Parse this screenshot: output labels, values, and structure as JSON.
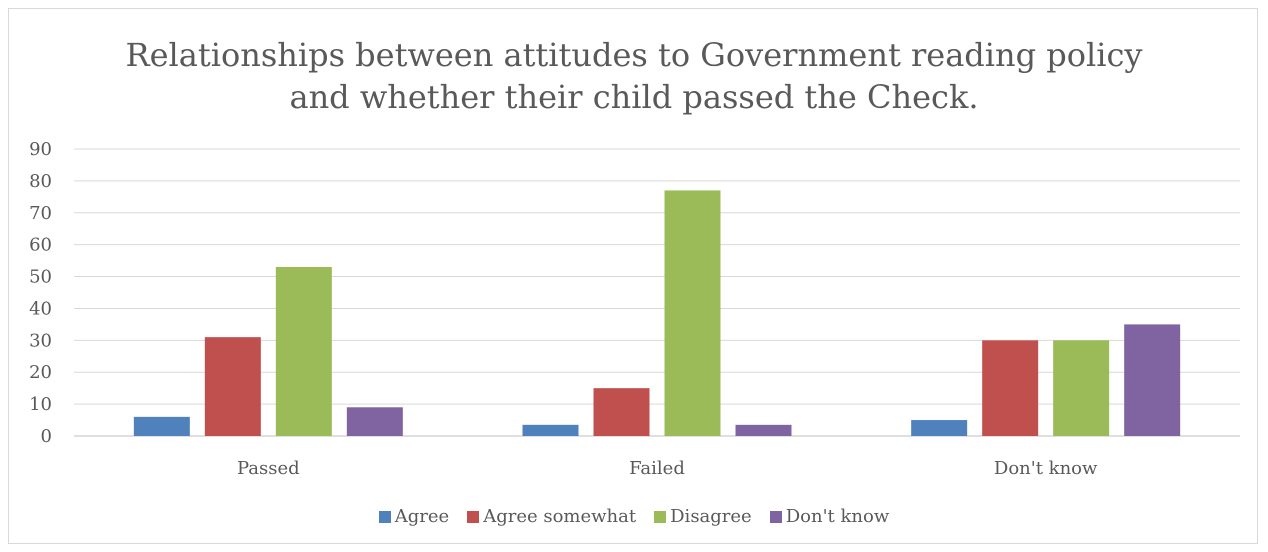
{
  "chart_data": {
    "type": "bar",
    "title_lines": [
      "Relationships between attitudes to Government reading policy",
      "and whether their child passed the Check."
    ],
    "categories": [
      "Passed",
      "Failed",
      "Don't know"
    ],
    "series": [
      {
        "name": "Agree",
        "color": "#4f81bd",
        "values": [
          6,
          3.5,
          5
        ]
      },
      {
        "name": "Agree somewhat",
        "color": "#c0504d",
        "values": [
          31,
          15,
          30
        ]
      },
      {
        "name": "Disagree",
        "color": "#9bbb59",
        "values": [
          53,
          77,
          30
        ]
      },
      {
        "name": "Don't know",
        "color": "#8064a2",
        "values": [
          9,
          3.5,
          35
        ]
      }
    ],
    "ylim": [
      0,
      90
    ],
    "yticks": [
      0,
      10,
      20,
      30,
      40,
      50,
      60,
      70,
      80,
      90
    ],
    "grid": true,
    "legend_position": "bottom"
  }
}
